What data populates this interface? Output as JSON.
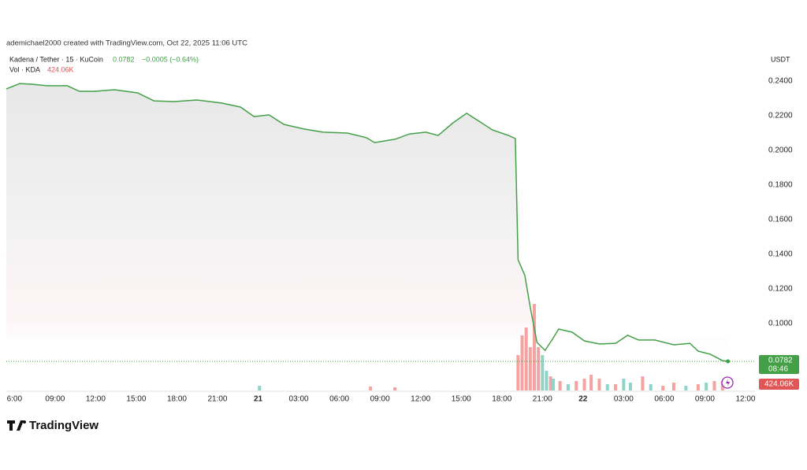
{
  "header": "ademichael2000 created with TradingView.com, Oct 22, 2025 11:06 UTC",
  "chart_data": {
    "type": "line",
    "symbol": "Kadena / Tether · 15 · KuCoin",
    "change": "−0.0005 (−0.64%)",
    "volume_title": "Vol · KDA",
    "last_volume_label": "424.06K",
    "countdown": "08:46",
    "currency": "USDT",
    "x": [
      -0.6,
      0.4,
      1.3,
      2.4,
      3.9,
      4.8,
      5.9,
      7.4,
      9.1,
      10.3,
      11.8,
      13.5,
      15.3,
      16.7,
      17.7,
      18.8,
      19.9,
      21.4,
      22.8,
      24.6,
      26.0,
      26.6,
      28.1,
      29.2,
      30.4,
      31.3,
      32.4,
      33.4,
      34.5,
      35.3,
      36.5,
      37.0,
      37.2,
      37.7,
      38.1,
      38.6,
      39.2,
      39.7,
      40.2,
      41.2,
      42.1,
      43.2,
      44.4,
      45.3,
      46.1,
      47.3,
      48.7,
      49.9,
      50.5,
      51.4,
      52.3,
      52.7
    ],
    "series": [
      {
        "name": "Kadena / Tether",
        "color": "#43a047",
        "values": [
          0.2355,
          0.2386,
          0.2382,
          0.2373,
          0.2373,
          0.2341,
          0.2341,
          0.235,
          0.2332,
          0.2286,
          0.2282,
          0.2291,
          0.2273,
          0.225,
          0.2195,
          0.2205,
          0.215,
          0.2123,
          0.2105,
          0.21,
          0.2073,
          0.2045,
          0.2064,
          0.2095,
          0.2105,
          0.2086,
          0.2159,
          0.2214,
          0.2159,
          0.2118,
          0.2086,
          0.2068,
          0.1368,
          0.1277,
          0.1095,
          0.0891,
          0.0845,
          0.0905,
          0.0968,
          0.095,
          0.09,
          0.0882,
          0.0886,
          0.0932,
          0.0905,
          0.0905,
          0.0877,
          0.0886,
          0.0841,
          0.0823,
          0.0786,
          0.0782
        ]
      }
    ],
    "volume": {
      "x": [
        18.1,
        26.3,
        28.1,
        37.2,
        37.5,
        37.8,
        38.1,
        38.4,
        38.7,
        39.0,
        39.3,
        39.6,
        39.8,
        40.3,
        40.9,
        41.5,
        42.1,
        42.6,
        43.2,
        43.8,
        44.4,
        45.0,
        45.5,
        46.4,
        47.0,
        47.9,
        48.7,
        49.6,
        50.5,
        51.1,
        51.7,
        52.3
      ],
      "values": [
        212000,
        177000,
        141000,
        1590000,
        2474000,
        2827000,
        1944000,
        3887000,
        1944000,
        1590000,
        883000,
        636000,
        530000,
        424000,
        283000,
        424000,
        530000,
        707000,
        530000,
        283000,
        283000,
        530000,
        353000,
        636000,
        283000,
        212000,
        353000,
        212000,
        283000,
        353000,
        424000,
        424060
      ],
      "colors": [
        "#8fd3c9",
        "#f4a3a0",
        "#f4a3a0",
        "#f4a3a0",
        "#f4a3a0",
        "#f4a3a0",
        "#f4a3a0",
        "#f4a3a0",
        "#f4a3a0",
        "#8fd3c9",
        "#8fd3c9",
        "#f4a3a0",
        "#8fd3c9",
        "#f4a3a0",
        "#8fd3c9",
        "#f4a3a0",
        "#f4a3a0",
        "#f4a3a0",
        "#f4a3a0",
        "#8fd3c9",
        "#f4a3a0",
        "#8fd3c9",
        "#8fd3c9",
        "#f4a3a0",
        "#8fd3c9",
        "#f4a3a0",
        "#f4a3a0",
        "#8fd3c9",
        "#f4a3a0",
        "#8fd3c9",
        "#f4a3a0",
        "#f4a3a0"
      ]
    },
    "xlim": [
      -0.6,
      54.7
    ],
    "xticks": [
      {
        "value": 0,
        "label": "6:00"
      },
      {
        "value": 3,
        "label": "09:00"
      },
      {
        "value": 6,
        "label": "12:00"
      },
      {
        "value": 9,
        "label": "15:00"
      },
      {
        "value": 12,
        "label": "18:00"
      },
      {
        "value": 15,
        "label": "21:00"
      },
      {
        "value": 18,
        "label": "21"
      },
      {
        "value": 21,
        "label": "03:00"
      },
      {
        "value": 24,
        "label": "06:00"
      },
      {
        "value": 27,
        "label": "09:00"
      },
      {
        "value": 30,
        "label": "12:00"
      },
      {
        "value": 33,
        "label": "15:00"
      },
      {
        "value": 36,
        "label": "18:00"
      },
      {
        "value": 39,
        "label": "21:00"
      },
      {
        "value": 42,
        "label": "22"
      },
      {
        "value": 45,
        "label": "03:00"
      },
      {
        "value": 48,
        "label": "06:00"
      },
      {
        "value": 51,
        "label": "09:00"
      },
      {
        "value": 54,
        "label": "12:00"
      }
    ],
    "ylim": [
      0.0609,
      0.255
    ],
    "yticks": [
      {
        "value": 0.24,
        "label": "0.2400"
      },
      {
        "value": 0.22,
        "label": "0.2200"
      },
      {
        "value": 0.2,
        "label": "0.2000"
      },
      {
        "value": 0.18,
        "label": "0.1800"
      },
      {
        "value": 0.16,
        "label": "0.1600"
      },
      {
        "value": 0.14,
        "label": "0.1400"
      },
      {
        "value": 0.12,
        "label": "0.1200"
      },
      {
        "value": 0.1,
        "label": "0.1000"
      }
    ]
  },
  "logo": "TradingView"
}
